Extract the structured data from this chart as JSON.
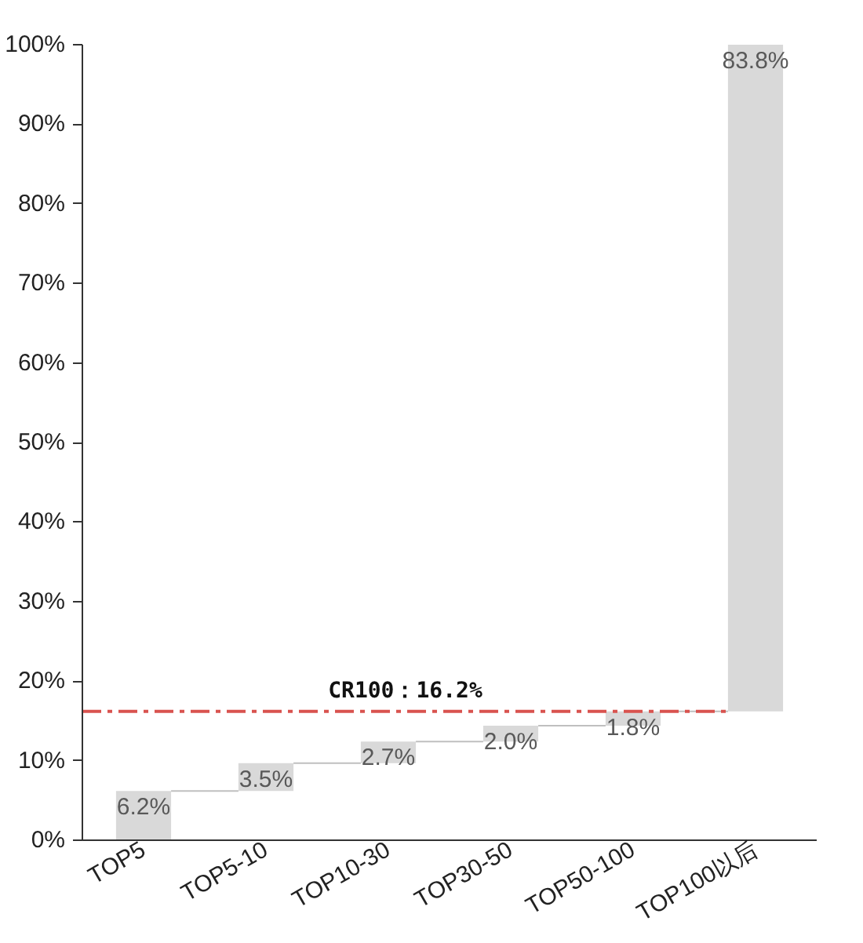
{
  "chart_data": {
    "type": "bar",
    "categories": [
      "TOP5",
      "TOP5-10",
      "TOP10-30",
      "TOP30-50",
      "TOP50-100",
      "TOP100以后"
    ],
    "values": [
      6.2,
      3.5,
      2.7,
      2.0,
      1.8,
      83.8
    ],
    "base": [
      0,
      6.2,
      9.7,
      12.4,
      14.4,
      16.2
    ],
    "color": "#d9d9d9",
    "value_labels": [
      "6.2%",
      "3.5%",
      "2.7%",
      "2.0%",
      "1.8%",
      "83.8%"
    ],
    "ylim": [
      0,
      100
    ],
    "yticks": [
      {
        "value": 0,
        "label": "0%"
      },
      {
        "value": 10,
        "label": "10%"
      },
      {
        "value": 20,
        "label": "20%"
      },
      {
        "value": 30,
        "label": "30%"
      },
      {
        "value": 40,
        "label": "40%"
      },
      {
        "value": 50,
        "label": "50%"
      },
      {
        "value": 60,
        "label": "60%"
      },
      {
        "value": 70,
        "label": "70%"
      },
      {
        "value": 80,
        "label": "80%"
      },
      {
        "value": 90,
        "label": "90%"
      },
      {
        "value": 100,
        "label": "100%"
      }
    ],
    "ref_lines": [
      {
        "axis": "y",
        "value": 16.2,
        "label": "CR100：16.2%",
        "color": "#d9534f",
        "line_style": "dashdot"
      }
    ],
    "grid": false
  }
}
